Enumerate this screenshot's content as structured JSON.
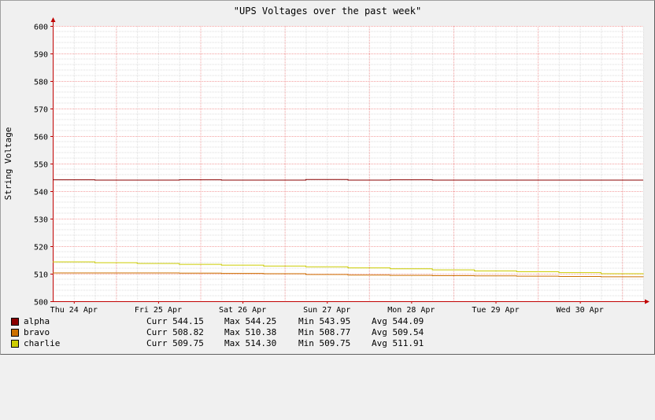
{
  "chart_data": {
    "type": "line",
    "title": "\"UPS Voltages over the past week\"",
    "ylabel": "String Voltage",
    "ylim": [
      500,
      600
    ],
    "yticks": [
      500,
      510,
      520,
      530,
      540,
      550,
      560,
      570,
      580,
      590,
      600
    ],
    "xticks": [
      "Thu 24 Apr",
      "Fri 25 Apr",
      "Sat 26 Apr",
      "Sun 27 Apr",
      "Mon 28 Apr",
      "Tue 29 Apr",
      "Wed 30 Apr"
    ],
    "xrange_days": [
      0,
      7.0
    ],
    "grid": true,
    "series": [
      {
        "name": "alpha",
        "color": "#8b0000",
        "stats": {
          "curr": "Curr 544.15",
          "max": "Max 544.25",
          "min": "Min 543.95",
          "avg": "Avg 544.09"
        },
        "x": [
          0,
          0.5,
          1.0,
          1.5,
          2.0,
          2.5,
          3.0,
          3.5,
          4.0,
          4.5,
          5.0,
          5.5,
          6.0,
          6.5,
          7.0
        ],
        "values": [
          544.1,
          544.0,
          544.0,
          544.1,
          544.0,
          544.0,
          544.2,
          544.0,
          544.1,
          544.0,
          544.0,
          544.0,
          544.0,
          544.0,
          544.0
        ]
      },
      {
        "name": "bravo",
        "color": "#cc7000",
        "stats": {
          "curr": "Curr 508.82",
          "max": "Max 510.38",
          "min": "Min 508.77",
          "avg": "Avg 509.54"
        },
        "x": [
          0,
          0.5,
          1.0,
          1.5,
          2.0,
          2.5,
          3.0,
          3.5,
          4.0,
          4.5,
          5.0,
          5.5,
          6.0,
          6.5,
          7.0
        ],
        "values": [
          510.3,
          510.3,
          510.3,
          510.2,
          510.1,
          510.0,
          509.7,
          509.5,
          509.4,
          509.3,
          509.2,
          509.1,
          509.0,
          508.9,
          508.8
        ]
      },
      {
        "name": "charlie",
        "color": "#cccc00",
        "stats": {
          "curr": "Curr 509.75",
          "max": "Max 514.30",
          "min": "Min 509.75",
          "avg": "Avg 511.91"
        },
        "x": [
          0,
          0.5,
          1.0,
          1.5,
          2.0,
          2.5,
          3.0,
          3.5,
          4.0,
          4.5,
          5.0,
          5.5,
          6.0,
          6.5,
          7.0
        ],
        "values": [
          514.3,
          514.0,
          513.7,
          513.4,
          513.1,
          512.8,
          512.5,
          512.1,
          511.8,
          511.4,
          511.0,
          510.7,
          510.4,
          510.0,
          509.8
        ]
      }
    ]
  }
}
